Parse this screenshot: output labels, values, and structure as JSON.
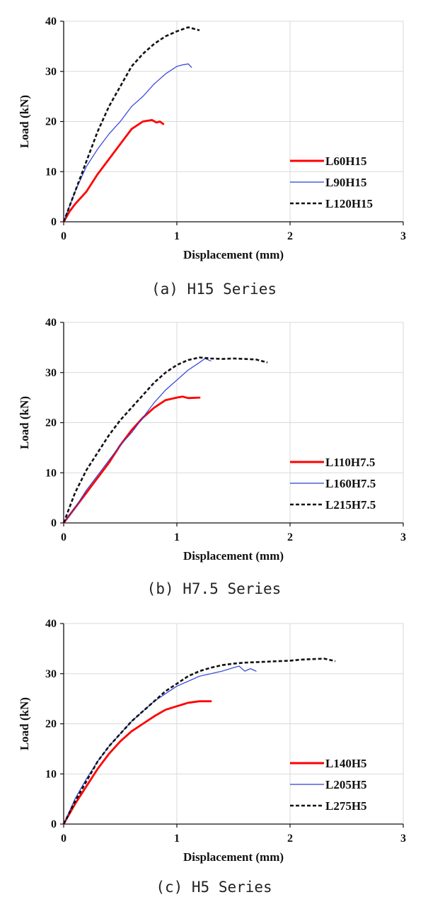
{
  "chart_data": [
    {
      "type": "line",
      "caption": "(a) H15 Series",
      "xlabel": "Displacement (mm)",
      "ylabel": "Load (kN)",
      "xlim": [
        0,
        3
      ],
      "ylim": [
        0,
        40
      ],
      "xticks": [
        0,
        1,
        2,
        3
      ],
      "yticks": [
        0,
        10,
        20,
        30,
        40
      ],
      "grid": true,
      "legend_position": "right",
      "series": [
        {
          "name": "L60H15",
          "color": "#ff0000",
          "style": "solid-thick",
          "points": [
            [
              0,
              0
            ],
            [
              0.05,
              2
            ],
            [
              0.1,
              3.5
            ],
            [
              0.2,
              6
            ],
            [
              0.3,
              9.5
            ],
            [
              0.4,
              12.5
            ],
            [
              0.5,
              15.5
            ],
            [
              0.6,
              18.5
            ],
            [
              0.7,
              20
            ],
            [
              0.78,
              20.3
            ],
            [
              0.82,
              19.8
            ],
            [
              0.85,
              20
            ],
            [
              0.88,
              19.5
            ]
          ]
        },
        {
          "name": "L90H15",
          "color": "#2a3fd6",
          "style": "solid-thin",
          "points": [
            [
              0,
              0
            ],
            [
              0.1,
              6
            ],
            [
              0.2,
              11
            ],
            [
              0.3,
              14.5
            ],
            [
              0.4,
              17.5
            ],
            [
              0.5,
              20
            ],
            [
              0.6,
              23
            ],
            [
              0.7,
              25
            ],
            [
              0.8,
              27.5
            ],
            [
              0.9,
              29.5
            ],
            [
              1.0,
              31
            ],
            [
              1.05,
              31.3
            ],
            [
              1.1,
              31.5
            ],
            [
              1.13,
              30.8
            ]
          ]
        },
        {
          "name": "L120H15",
          "color": "#111111",
          "style": "dashed",
          "points": [
            [
              0,
              0
            ],
            [
              0.1,
              6
            ],
            [
              0.2,
              12
            ],
            [
              0.3,
              18
            ],
            [
              0.4,
              23
            ],
            [
              0.5,
              27
            ],
            [
              0.6,
              31
            ],
            [
              0.7,
              33.5
            ],
            [
              0.8,
              35.5
            ],
            [
              0.9,
              37
            ],
            [
              1.0,
              38
            ],
            [
              1.1,
              38.8
            ],
            [
              1.15,
              38.5
            ],
            [
              1.2,
              38.2
            ]
          ]
        }
      ]
    },
    {
      "type": "line",
      "caption": "(b) H7.5 Series",
      "xlabel": "Displacement (mm)",
      "ylabel": "Load (kN)",
      "xlim": [
        0,
        3
      ],
      "ylim": [
        0,
        40
      ],
      "xticks": [
        0,
        1,
        2,
        3
      ],
      "yticks": [
        0,
        10,
        20,
        30,
        40
      ],
      "grid": true,
      "legend_position": "right",
      "series": [
        {
          "name": "L110H7.5",
          "color": "#ff0000",
          "style": "solid-thick",
          "points": [
            [
              0,
              0
            ],
            [
              0.1,
              3
            ],
            [
              0.2,
              6
            ],
            [
              0.3,
              9
            ],
            [
              0.4,
              12
            ],
            [
              0.5,
              15.5
            ],
            [
              0.6,
              18.5
            ],
            [
              0.7,
              21
            ],
            [
              0.8,
              23
            ],
            [
              0.9,
              24.5
            ],
            [
              1.0,
              25
            ],
            [
              1.05,
              25.2
            ],
            [
              1.1,
              24.9
            ],
            [
              1.2,
              25
            ]
          ]
        },
        {
          "name": "L160H7.5",
          "color": "#2a3fd6",
          "style": "solid-thin",
          "points": [
            [
              0,
              0
            ],
            [
              0.1,
              3
            ],
            [
              0.2,
              6.5
            ],
            [
              0.3,
              9.5
            ],
            [
              0.4,
              12.5
            ],
            [
              0.5,
              15.5
            ],
            [
              0.6,
              18
            ],
            [
              0.7,
              21
            ],
            [
              0.8,
              24
            ],
            [
              0.9,
              26.5
            ],
            [
              1.0,
              28.5
            ],
            [
              1.1,
              30.5
            ],
            [
              1.2,
              32
            ],
            [
              1.25,
              32.8
            ],
            [
              1.3,
              32.3
            ]
          ]
        },
        {
          "name": "L215H7.5",
          "color": "#111111",
          "style": "dashed",
          "points": [
            [
              0,
              0
            ],
            [
              0.1,
              6
            ],
            [
              0.2,
              10.5
            ],
            [
              0.3,
              14
            ],
            [
              0.4,
              17.5
            ],
            [
              0.5,
              20.5
            ],
            [
              0.6,
              23
            ],
            [
              0.7,
              25.5
            ],
            [
              0.8,
              28
            ],
            [
              0.9,
              30
            ],
            [
              1.0,
              31.5
            ],
            [
              1.1,
              32.5
            ],
            [
              1.2,
              33
            ],
            [
              1.3,
              32.8
            ],
            [
              1.4,
              32.7
            ],
            [
              1.5,
              32.8
            ],
            [
              1.6,
              32.7
            ],
            [
              1.7,
              32.6
            ],
            [
              1.8,
              32
            ]
          ]
        }
      ]
    },
    {
      "type": "line",
      "caption": "(c) H5 Series",
      "xlabel": "Displacement (mm)",
      "ylabel": "Load (kN)",
      "xlim": [
        0,
        3
      ],
      "ylim": [
        0,
        40
      ],
      "xticks": [
        0,
        1,
        2,
        3
      ],
      "yticks": [
        0,
        10,
        20,
        30,
        40
      ],
      "grid": true,
      "legend_position": "right",
      "series": [
        {
          "name": "L140H5",
          "color": "#ff0000",
          "style": "solid-thick",
          "points": [
            [
              0,
              0
            ],
            [
              0.1,
              4
            ],
            [
              0.2,
              7.5
            ],
            [
              0.3,
              11
            ],
            [
              0.4,
              14
            ],
            [
              0.5,
              16.5
            ],
            [
              0.6,
              18.5
            ],
            [
              0.7,
              20
            ],
            [
              0.8,
              21.5
            ],
            [
              0.9,
              22.8
            ],
            [
              1.0,
              23.5
            ],
            [
              1.1,
              24.2
            ],
            [
              1.2,
              24.5
            ],
            [
              1.3,
              24.5
            ]
          ]
        },
        {
          "name": "L205H5",
          "color": "#2a3fd6",
          "style": "solid-thin",
          "points": [
            [
              0,
              0
            ],
            [
              0.1,
              5
            ],
            [
              0.2,
              9
            ],
            [
              0.3,
              12.5
            ],
            [
              0.4,
              15.5
            ],
            [
              0.5,
              18
            ],
            [
              0.6,
              20.5
            ],
            [
              0.7,
              22.5
            ],
            [
              0.8,
              24.5
            ],
            [
              0.9,
              26
            ],
            [
              1.0,
              27.5
            ],
            [
              1.1,
              28.5
            ],
            [
              1.2,
              29.5
            ],
            [
              1.3,
              30
            ],
            [
              1.4,
              30.5
            ],
            [
              1.5,
              31.2
            ],
            [
              1.55,
              31.5
            ],
            [
              1.6,
              30.5
            ],
            [
              1.65,
              31
            ],
            [
              1.7,
              30.5
            ]
          ]
        },
        {
          "name": "L275H5",
          "color": "#111111",
          "style": "dashed",
          "points": [
            [
              0,
              0
            ],
            [
              0.1,
              4.5
            ],
            [
              0.2,
              8.5
            ],
            [
              0.3,
              12.5
            ],
            [
              0.4,
              15.5
            ],
            [
              0.5,
              18
            ],
            [
              0.6,
              20.5
            ],
            [
              0.7,
              22.5
            ],
            [
              0.8,
              24.5
            ],
            [
              0.9,
              26.5
            ],
            [
              1.0,
              28
            ],
            [
              1.1,
              29.5
            ],
            [
              1.2,
              30.5
            ],
            [
              1.3,
              31.2
            ],
            [
              1.4,
              31.7
            ],
            [
              1.5,
              32
            ],
            [
              1.6,
              32.2
            ],
            [
              1.7,
              32.3
            ],
            [
              1.8,
              32.4
            ],
            [
              1.9,
              32.5
            ],
            [
              2.0,
              32.6
            ],
            [
              2.1,
              32.8
            ],
            [
              2.2,
              32.9
            ],
            [
              2.3,
              33
            ],
            [
              2.4,
              32.5
            ]
          ]
        }
      ]
    }
  ]
}
